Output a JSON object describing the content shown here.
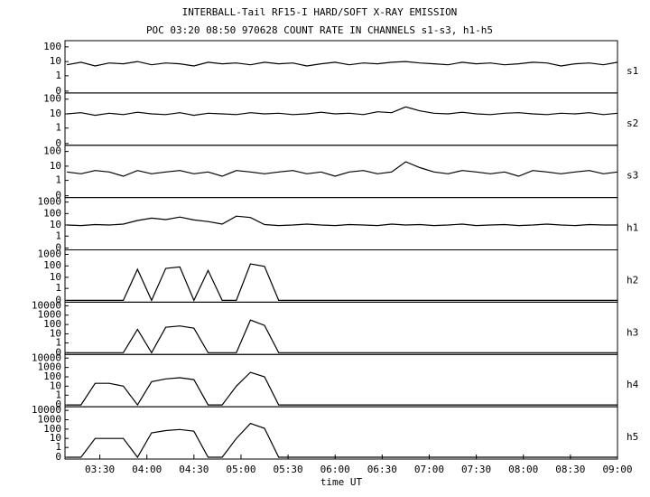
{
  "chart_data": [
    {
      "type": "line",
      "title": "INTERBALL-Tail RF15-I HARD/SOFT X-RAY EMISSION",
      "subtitle": "POC 03:20 08:50 970628  COUNT RATE IN CHANNELS s1-s3, h1-h5",
      "label": "s1",
      "color": "#000000",
      "yscale": "log",
      "xlim": [
        3.13,
        9.0
      ],
      "ylim": [
        0,
        150
      ],
      "yticks": [
        100,
        10,
        1,
        0
      ],
      "x": [
        3.15,
        3.3,
        3.45,
        3.6,
        3.75,
        3.9,
        4.05,
        4.2,
        4.35,
        4.5,
        4.65,
        4.8,
        4.95,
        5.1,
        5.25,
        5.4,
        5.55,
        5.7,
        5.85,
        6.0,
        6.15,
        6.3,
        6.45,
        6.6,
        6.75,
        6.9,
        7.05,
        7.2,
        7.35,
        7.5,
        7.65,
        7.8,
        7.95,
        8.1,
        8.25,
        8.4,
        8.55,
        8.7,
        8.85,
        9.0
      ],
      "values": [
        6,
        9,
        5,
        8,
        7,
        10,
        6,
        8,
        7,
        5,
        9,
        7,
        8,
        6,
        9,
        7,
        8,
        5,
        7,
        9,
        6,
        8,
        7,
        9,
        10,
        8,
        7,
        6,
        9,
        7,
        8,
        6,
        7,
        9,
        8,
        5,
        7,
        8,
        6,
        9
      ]
    },
    {
      "type": "line",
      "label": "s2",
      "color": "#000000",
      "yscale": "log",
      "xlim": [
        3.13,
        9.0
      ],
      "ylim": [
        0,
        150
      ],
      "yticks": [
        100,
        10,
        1,
        0
      ],
      "x": [
        3.15,
        3.3,
        3.45,
        3.6,
        3.75,
        3.9,
        4.05,
        4.2,
        4.35,
        4.5,
        4.65,
        4.8,
        4.95,
        5.1,
        5.25,
        5.4,
        5.55,
        5.7,
        5.85,
        6.0,
        6.15,
        6.3,
        6.45,
        6.6,
        6.75,
        6.9,
        7.05,
        7.2,
        7.35,
        7.5,
        7.65,
        7.8,
        7.95,
        8.1,
        8.25,
        8.4,
        8.55,
        8.7,
        8.85,
        9.0
      ],
      "values": [
        10,
        12,
        8,
        11,
        9,
        13,
        10,
        9,
        12,
        8,
        11,
        10,
        9,
        12,
        10,
        11,
        9,
        10,
        13,
        10,
        11,
        9,
        14,
        12,
        30,
        16,
        11,
        10,
        13,
        10,
        9,
        11,
        12,
        10,
        9,
        11,
        10,
        12,
        9,
        11
      ]
    },
    {
      "type": "line",
      "label": "s3",
      "color": "#000000",
      "yscale": "log",
      "xlim": [
        3.13,
        9.0
      ],
      "ylim": [
        0,
        150
      ],
      "yticks": [
        100,
        10,
        1,
        0
      ],
      "x": [
        3.15,
        3.3,
        3.45,
        3.6,
        3.75,
        3.9,
        4.05,
        4.2,
        4.35,
        4.5,
        4.65,
        4.8,
        4.95,
        5.1,
        5.25,
        5.4,
        5.55,
        5.7,
        5.85,
        6.0,
        6.15,
        6.3,
        6.45,
        6.6,
        6.75,
        6.9,
        7.05,
        7.2,
        7.35,
        7.5,
        7.65,
        7.8,
        7.95,
        8.1,
        8.25,
        8.4,
        8.55,
        8.7,
        8.85,
        9.0
      ],
      "values": [
        4,
        3,
        5,
        4,
        2,
        5,
        3,
        4,
        5,
        3,
        4,
        2,
        5,
        4,
        3,
        4,
        5,
        3,
        4,
        2,
        4,
        5,
        3,
        4,
        20,
        8,
        4,
        3,
        5,
        4,
        3,
        4,
        2,
        5,
        4,
        3,
        4,
        5,
        3,
        4
      ]
    },
    {
      "type": "line",
      "label": "h1",
      "color": "#000000",
      "yscale": "log",
      "xlim": [
        3.13,
        9.0
      ],
      "ylim": [
        0,
        1200
      ],
      "yticks": [
        1000,
        100,
        10,
        1,
        0
      ],
      "x": [
        3.15,
        3.3,
        3.45,
        3.6,
        3.75,
        3.9,
        4.05,
        4.2,
        4.35,
        4.5,
        4.65,
        4.8,
        4.95,
        5.1,
        5.25,
        5.4,
        5.55,
        5.7,
        5.85,
        6.0,
        6.15,
        6.3,
        6.45,
        6.6,
        6.75,
        6.9,
        7.05,
        7.2,
        7.35,
        7.5,
        7.65,
        7.8,
        7.95,
        8.1,
        8.25,
        8.4,
        8.55,
        8.7,
        8.85,
        9.0
      ],
      "values": [
        10,
        9,
        11,
        10,
        12,
        25,
        40,
        30,
        50,
        28,
        20,
        12,
        60,
        45,
        11,
        9,
        10,
        12,
        10,
        9,
        11,
        10,
        9,
        12,
        10,
        11,
        9,
        10,
        12,
        9,
        10,
        11,
        9,
        10,
        12,
        10,
        9,
        11,
        10,
        10
      ]
    },
    {
      "type": "line",
      "label": "h2",
      "color": "#000000",
      "yscale": "log",
      "xlim": [
        3.13,
        9.0
      ],
      "ylim": [
        0,
        1200
      ],
      "yticks": [
        1000,
        100,
        10,
        1,
        0
      ],
      "x": [
        3.15,
        3.3,
        3.45,
        3.6,
        3.75,
        3.9,
        4.05,
        4.2,
        4.35,
        4.5,
        4.65,
        4.8,
        4.95,
        5.1,
        5.25,
        5.4,
        5.55,
        5.7,
        5.85,
        6.0,
        6.15,
        6.3,
        6.45,
        6.6,
        6.75,
        6.9,
        7.05,
        7.2,
        7.35,
        7.5,
        7.65,
        7.8,
        7.95,
        8.1,
        8.25,
        8.4,
        8.55,
        8.7,
        8.85,
        9.0
      ],
      "values": [
        0,
        0,
        0,
        0,
        0,
        50,
        0,
        60,
        80,
        0,
        40,
        0,
        0,
        150,
        90,
        0,
        0,
        0,
        0,
        0,
        0,
        0,
        0,
        0,
        0,
        0,
        0,
        0,
        0,
        0,
        0,
        0,
        0,
        0,
        0,
        0,
        0,
        0,
        0,
        0
      ]
    },
    {
      "type": "line",
      "label": "h3",
      "color": "#000000",
      "yscale": "log",
      "xlim": [
        3.13,
        9.0
      ],
      "ylim": [
        0,
        10000
      ],
      "yticks": [
        10000,
        1000,
        100,
        10,
        1,
        0
      ],
      "x": [
        3.15,
        3.3,
        3.45,
        3.6,
        3.75,
        3.9,
        4.05,
        4.2,
        4.35,
        4.5,
        4.65,
        4.8,
        4.95,
        5.1,
        5.25,
        5.4,
        5.55,
        5.7,
        5.85,
        6.0,
        6.15,
        6.3,
        6.45,
        6.6,
        6.75,
        6.9,
        7.05,
        7.2,
        7.35,
        7.5,
        7.65,
        7.8,
        7.95,
        8.1,
        8.25,
        8.4,
        8.55,
        8.7,
        8.85,
        9.0
      ],
      "values": [
        0,
        0,
        0,
        0,
        0,
        30,
        0,
        50,
        70,
        40,
        0,
        0,
        0,
        300,
        80,
        0,
        0,
        0,
        0,
        0,
        0,
        0,
        0,
        0,
        0,
        0,
        0,
        0,
        0,
        0,
        0,
        0,
        0,
        0,
        0,
        0,
        0,
        0,
        0,
        0
      ]
    },
    {
      "type": "line",
      "label": "h4",
      "color": "#000000",
      "yscale": "log",
      "xlim": [
        3.13,
        9.0
      ],
      "ylim": [
        0,
        10000
      ],
      "yticks": [
        10000,
        1000,
        100,
        10,
        1,
        0
      ],
      "x": [
        3.15,
        3.3,
        3.45,
        3.6,
        3.75,
        3.9,
        4.05,
        4.2,
        4.35,
        4.5,
        4.65,
        4.8,
        4.95,
        5.1,
        5.25,
        5.4,
        5.55,
        5.7,
        5.85,
        6.0,
        6.15,
        6.3,
        6.45,
        6.6,
        6.75,
        6.9,
        7.05,
        7.2,
        7.35,
        7.5,
        7.65,
        7.8,
        7.95,
        8.1,
        8.25,
        8.4,
        8.55,
        8.7,
        8.85,
        9.0
      ],
      "values": [
        0,
        0,
        20,
        20,
        10,
        0,
        30,
        60,
        80,
        50,
        0,
        0,
        10,
        300,
        100,
        0,
        0,
        0,
        0,
        0,
        0,
        0,
        0,
        0,
        0,
        0,
        0,
        0,
        0,
        0,
        0,
        0,
        0,
        0,
        0,
        0,
        0,
        0,
        0,
        0
      ]
    },
    {
      "type": "line",
      "label": "h5",
      "color": "#000000",
      "yscale": "log",
      "xlabel": "time UT",
      "xlim": [
        3.13,
        9.0
      ],
      "ylim": [
        0,
        10000
      ],
      "yticks": [
        10000,
        1000,
        100,
        10,
        1,
        0
      ],
      "xticks": [
        {
          "value": 3.5,
          "label": "03:30"
        },
        {
          "value": 4,
          "label": "04:00"
        },
        {
          "value": 4.5,
          "label": "04:30"
        },
        {
          "value": 5,
          "label": "05:00"
        },
        {
          "value": 5.5,
          "label": "05:30"
        },
        {
          "value": 6,
          "label": "06:00"
        },
        {
          "value": 6.5,
          "label": "06:30"
        },
        {
          "value": 7,
          "label": "07:00"
        },
        {
          "value": 7.5,
          "label": "07:30"
        },
        {
          "value": 8,
          "label": "08:00"
        },
        {
          "value": 8.5,
          "label": "08:30"
        },
        {
          "value": 9,
          "label": "09:00"
        }
      ],
      "x": [
        3.15,
        3.3,
        3.45,
        3.6,
        3.75,
        3.9,
        4.05,
        4.2,
        4.35,
        4.5,
        4.65,
        4.8,
        4.95,
        5.1,
        5.25,
        5.4,
        5.55,
        5.7,
        5.85,
        6.0,
        6.15,
        6.3,
        6.45,
        6.6,
        6.75,
        6.9,
        7.05,
        7.2,
        7.35,
        7.5,
        7.65,
        7.8,
        7.95,
        8.1,
        8.25,
        8.4,
        8.55,
        8.7,
        8.85,
        9.0
      ],
      "values": [
        0,
        0,
        10,
        10,
        10,
        0,
        40,
        70,
        90,
        60,
        0,
        0,
        10,
        400,
        120,
        0,
        0,
        0,
        0,
        0,
        0,
        0,
        0,
        0,
        0,
        0,
        0,
        0,
        0,
        0,
        0,
        0,
        0,
        0,
        0,
        0,
        0,
        0,
        0,
        0
      ]
    }
  ]
}
